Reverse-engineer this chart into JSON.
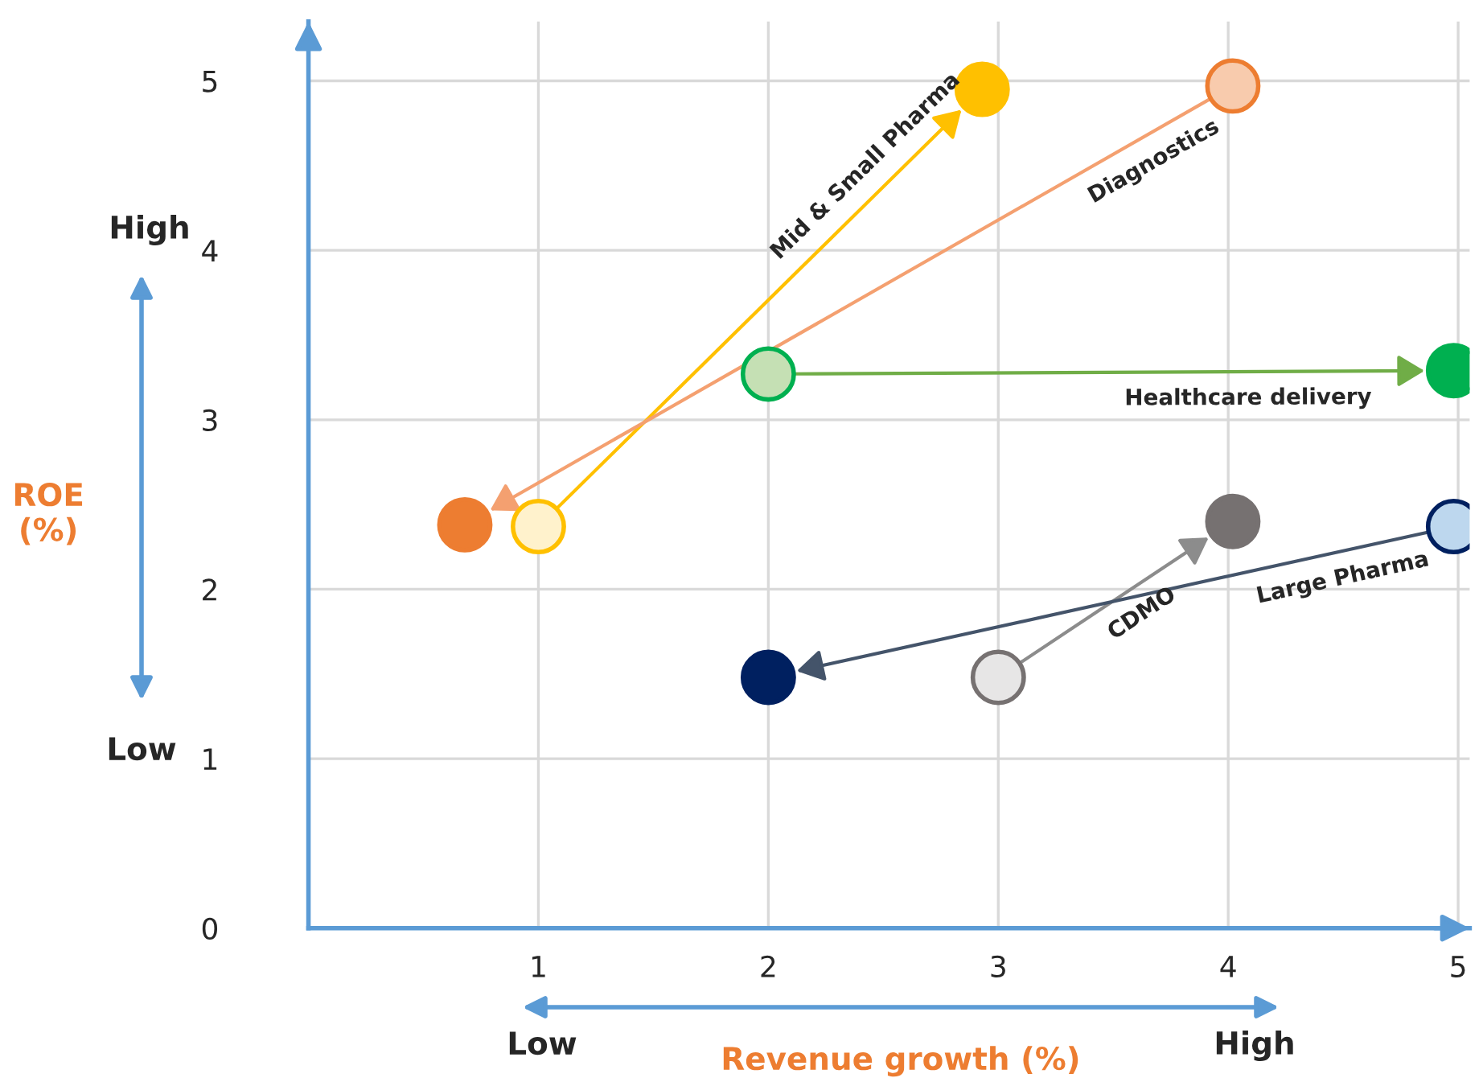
{
  "chart_data": {
    "type": "scatter",
    "xlabel": "Revenue growth (%)",
    "ylabel": "ROE\n(%)",
    "xlim": [
      0,
      5.05
    ],
    "ylim": [
      0,
      5.35
    ],
    "xticks": [
      1,
      2,
      3,
      4,
      5
    ],
    "yticks": [
      0,
      1,
      2,
      3,
      4,
      5
    ],
    "grid": true,
    "marker": "circle",
    "line_style": "solid",
    "annotations": [
      "High",
      "Low",
      "Low",
      "High"
    ],
    "series": [
      {
        "name": "Mid & Small Pharma",
        "color": "#ffc000",
        "x": [
          1.0,
          2.93
        ],
        "values": [
          2.37,
          4.95
        ],
        "colors": [
          "#fff2cc",
          "#ffc000"
        ]
      },
      {
        "name": "Diagnostics",
        "color": "#f4a070",
        "x": [
          4.02,
          0.68
        ],
        "values": [
          4.97,
          2.38
        ],
        "colors": [
          "#f8cbad",
          "#ed7d31"
        ]
      },
      {
        "name": "Healthcare delivery",
        "color": "#70ad47",
        "x": [
          2.0,
          4.98
        ],
        "values": [
          3.27,
          3.29
        ],
        "colors": [
          "#c5e0b4",
          "#00b050"
        ]
      },
      {
        "name": "CDMO",
        "color": "#8c8c8c",
        "x": [
          3.0,
          4.02
        ],
        "values": [
          1.48,
          2.4
        ],
        "colors": [
          "#e7e6e6",
          "#767171"
        ]
      },
      {
        "name": "Large Pharma",
        "color": "#44546a",
        "x": [
          4.98,
          2.0
        ],
        "values": [
          2.37,
          1.48
        ],
        "colors": [
          "#bdd7ee",
          "#002060"
        ]
      }
    ]
  }
}
